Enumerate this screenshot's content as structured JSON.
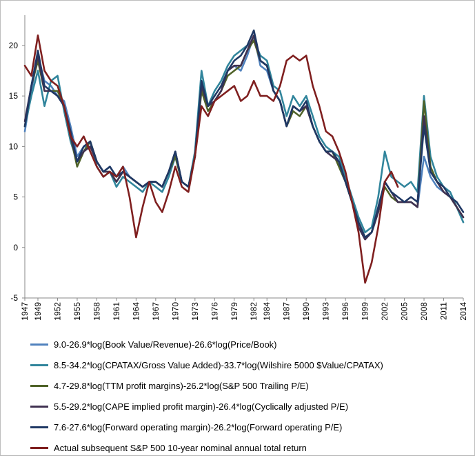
{
  "chart_data": {
    "type": "line",
    "title": "",
    "xlabel": "",
    "ylabel": "",
    "xlim": [
      1947,
      2014
    ],
    "ylim": [
      -5,
      23
    ],
    "y_ticks": [
      -5,
      0,
      5,
      10,
      15,
      20
    ],
    "x_ticks": [
      1947,
      1949,
      1952,
      1955,
      1958,
      1961,
      1964,
      1967,
      1970,
      1973,
      1976,
      1979,
      1982,
      1984,
      1987,
      1990,
      1993,
      1996,
      1999,
      2002,
      2005,
      2008,
      2011,
      2014
    ],
    "grid": false,
    "legend_position": "bottom",
    "series": [
      {
        "name": "9.0-26.9*log(Book Value/Revenue)-26.6*log(Price/Book)",
        "color": "#4f81bd",
        "x": [
          1947,
          1948,
          1949,
          1950,
          1951,
          1952,
          1953,
          1954,
          1955,
          1956,
          1957,
          1958,
          1959,
          1960,
          1961,
          1962,
          1963,
          1964,
          1965,
          1966,
          1967,
          1968,
          1969,
          1970,
          1971,
          1972,
          1973,
          1974,
          1975,
          1976,
          1977,
          1978,
          1979,
          1980,
          1981,
          1982,
          1983,
          1984,
          1985,
          1986,
          1987,
          1988,
          1989,
          1990,
          1991,
          1992,
          1993,
          1994,
          1995,
          1996,
          1997,
          1998,
          1999,
          2000,
          2001,
          2002,
          2003,
          2004,
          2005,
          2006,
          2007,
          2008,
          2009,
          2010,
          2011,
          2012,
          2013,
          2014
        ],
        "values": [
          11.5,
          15.5,
          19.0,
          16.5,
          16.0,
          15.0,
          14.5,
          12.0,
          9.0,
          10.0,
          10.0,
          8.5,
          7.5,
          8.0,
          7.0,
          8.0,
          7.0,
          6.5,
          6.0,
          6.5,
          6.5,
          6.0,
          7.5,
          9.5,
          6.5,
          6.0,
          9.0,
          16.0,
          14.0,
          14.5,
          15.5,
          17.5,
          18.0,
          17.5,
          19.0,
          21.0,
          18.0,
          17.5,
          15.5,
          14.5,
          12.0,
          14.0,
          13.5,
          14.0,
          12.0,
          10.5,
          9.5,
          9.0,
          8.5,
          6.5,
          4.5,
          2.0,
          0.8,
          1.5,
          3.5,
          6.5,
          5.5,
          4.5,
          4.5,
          4.5,
          4.0,
          9.0,
          7.0,
          6.0,
          5.5,
          5.0,
          4.0,
          3.0
        ]
      },
      {
        "name": "8.5-34.2*log(CPATAX/Gross Value Added)-33.7*log(Wilshire 5000 $Value/CPATAX)",
        "color": "#31859c",
        "x": [
          1947,
          1948,
          1949,
          1950,
          1951,
          1952,
          1953,
          1954,
          1955,
          1956,
          1957,
          1958,
          1959,
          1960,
          1961,
          1962,
          1963,
          1964,
          1965,
          1966,
          1967,
          1968,
          1969,
          1970,
          1971,
          1972,
          1973,
          1974,
          1975,
          1976,
          1977,
          1978,
          1979,
          1980,
          1981,
          1982,
          1983,
          1984,
          1985,
          1986,
          1987,
          1988,
          1989,
          1990,
          1991,
          1992,
          1993,
          1994,
          1995,
          1996,
          1997,
          1998,
          1999,
          2000,
          2001,
          2002,
          2003,
          2004,
          2005,
          2006,
          2007,
          2008,
          2009,
          2010,
          2011,
          2012,
          2013,
          2014
        ],
        "values": [
          12.0,
          15.0,
          17.5,
          14.0,
          16.5,
          17.0,
          13.5,
          10.5,
          8.5,
          9.5,
          10.5,
          8.0,
          7.0,
          7.5,
          6.0,
          7.0,
          6.5,
          6.0,
          5.5,
          6.5,
          6.0,
          5.5,
          7.0,
          9.0,
          6.5,
          6.0,
          9.5,
          17.5,
          14.0,
          15.5,
          16.5,
          18.0,
          19.0,
          19.5,
          20.0,
          20.5,
          19.0,
          18.5,
          16.0,
          15.5,
          13.0,
          15.0,
          14.0,
          15.0,
          13.0,
          11.0,
          10.0,
          9.5,
          9.0,
          7.0,
          5.0,
          3.0,
          1.5,
          2.0,
          5.0,
          9.5,
          7.0,
          6.5,
          6.0,
          6.5,
          5.5,
          15.0,
          9.0,
          7.0,
          6.0,
          5.5,
          4.0,
          2.5
        ]
      },
      {
        "name": "4.7-29.8*log(TTM profit margins)-26.2*log(S&P 500 Trailing P/E)",
        "color": "#4f6228",
        "x": [
          1947,
          1948,
          1949,
          1950,
          1951,
          1952,
          1953,
          1954,
          1955,
          1956,
          1957,
          1958,
          1959,
          1960,
          1961,
          1962,
          1963,
          1964,
          1965,
          1966,
          1967,
          1968,
          1969,
          1970,
          1971,
          1972,
          1973,
          1974,
          1975,
          1976,
          1977,
          1978,
          1979,
          1980,
          1981,
          1982,
          1983,
          1984,
          1985,
          1986,
          1987,
          1988,
          1989,
          1990,
          1991,
          1992,
          1993,
          1994,
          1995,
          1996,
          1997,
          1998,
          1999,
          2000,
          2001,
          2002,
          2003,
          2004,
          2005,
          2006,
          2007,
          2008,
          2009,
          2010,
          2011,
          2012,
          2013,
          2014
        ],
        "values": [
          12.0,
          16.0,
          18.5,
          15.5,
          15.5,
          15.5,
          14.0,
          11.0,
          8.0,
          9.5,
          10.5,
          8.5,
          7.5,
          7.5,
          6.5,
          7.5,
          7.0,
          6.5,
          6.0,
          6.5,
          6.5,
          6.0,
          7.5,
          9.0,
          6.5,
          6.0,
          9.0,
          15.5,
          13.5,
          14.5,
          15.5,
          17.0,
          17.5,
          18.0,
          19.5,
          20.5,
          18.5,
          18.0,
          15.5,
          14.5,
          12.0,
          13.5,
          13.0,
          14.0,
          12.0,
          10.5,
          9.5,
          9.5,
          8.0,
          6.5,
          4.5,
          2.5,
          1.0,
          1.5,
          3.5,
          6.0,
          5.0,
          4.5,
          4.5,
          4.5,
          4.0,
          14.5,
          8.0,
          6.5,
          5.5,
          5.0,
          4.0,
          3.0
        ]
      },
      {
        "name": "5.5-29.2*log(CAPE implied profit margin)-26.4*log(Cyclically adjusted P/E)",
        "color": "#403151",
        "x": [
          1947,
          1948,
          1949,
          1950,
          1951,
          1952,
          1953,
          1954,
          1955,
          1956,
          1957,
          1958,
          1959,
          1960,
          1961,
          1962,
          1963,
          1964,
          1965,
          1966,
          1967,
          1968,
          1969,
          1970,
          1971,
          1972,
          1973,
          1974,
          1975,
          1976,
          1977,
          1978,
          1979,
          1980,
          1981,
          1982,
          1983,
          1984,
          1985,
          1986,
          1987,
          1988,
          1989,
          1990,
          1991,
          1992,
          1993,
          1994,
          1995,
          1996,
          1997,
          1998,
          1999,
          2000,
          2001,
          2002,
          2003,
          2004,
          2005,
          2006,
          2007,
          2008,
          2009,
          2010,
          2011,
          2012,
          2013,
          2014
        ],
        "values": [
          12.5,
          16.0,
          19.0,
          15.5,
          15.5,
          15.0,
          14.0,
          11.0,
          8.5,
          9.5,
          10.0,
          8.5,
          7.5,
          7.5,
          6.5,
          7.5,
          7.0,
          6.5,
          6.0,
          6.5,
          6.5,
          6.0,
          7.5,
          9.5,
          6.5,
          6.0,
          9.0,
          16.0,
          14.0,
          14.5,
          15.5,
          17.5,
          18.0,
          18.0,
          19.5,
          21.0,
          18.5,
          18.0,
          15.5,
          14.5,
          12.0,
          14.0,
          13.5,
          14.0,
          12.0,
          10.5,
          9.5,
          9.0,
          8.5,
          6.5,
          4.5,
          2.0,
          0.8,
          1.5,
          3.5,
          6.5,
          5.5,
          4.5,
          4.5,
          4.5,
          4.0,
          13.0,
          7.5,
          6.5,
          5.5,
          5.0,
          4.0,
          3.0
        ]
      },
      {
        "name": "7.6-27.6*log(Forward operating margin)-26.2*log(Forward operating P/E)",
        "color": "#1f3864",
        "x": [
          1947,
          1948,
          1949,
          1950,
          1951,
          1952,
          1953,
          1954,
          1955,
          1956,
          1957,
          1958,
          1959,
          1960,
          1961,
          1962,
          1963,
          1964,
          1965,
          1966,
          1967,
          1968,
          1969,
          1970,
          1971,
          1972,
          1973,
          1974,
          1975,
          1976,
          1977,
          1978,
          1979,
          1980,
          1981,
          1982,
          1983,
          1984,
          1985,
          1986,
          1987,
          1988,
          1989,
          1990,
          1991,
          1992,
          1993,
          1994,
          1995,
          1996,
          1997,
          1998,
          1999,
          2000,
          2001,
          2002,
          2003,
          2004,
          2005,
          2006,
          2007,
          2008,
          2009,
          2010,
          2011,
          2012,
          2013,
          2014
        ],
        "values": [
          12.0,
          16.0,
          19.5,
          16.0,
          15.5,
          15.0,
          14.0,
          11.5,
          8.5,
          10.0,
          10.5,
          8.5,
          7.5,
          8.0,
          7.0,
          7.5,
          7.0,
          6.5,
          6.0,
          6.5,
          6.5,
          6.0,
          7.5,
          9.5,
          6.5,
          6.0,
          9.0,
          16.5,
          14.0,
          15.0,
          16.0,
          17.5,
          18.5,
          19.0,
          20.0,
          21.5,
          18.5,
          18.0,
          15.5,
          14.5,
          12.0,
          14.0,
          13.5,
          14.5,
          12.0,
          10.5,
          9.5,
          9.5,
          8.5,
          6.5,
          4.5,
          2.5,
          1.0,
          1.5,
          4.0,
          6.5,
          5.5,
          5.0,
          4.5,
          5.0,
          4.5,
          12.0,
          7.5,
          6.5,
          6.0,
          5.0,
          4.5,
          3.5
        ]
      },
      {
        "name": "Actual subsequent S&P 500 10-year nominal annual total return",
        "color": "#7f1f1f",
        "x": [
          1947,
          1948,
          1949,
          1950,
          1951,
          1952,
          1953,
          1954,
          1955,
          1956,
          1957,
          1958,
          1959,
          1960,
          1961,
          1962,
          1963,
          1964,
          1965,
          1966,
          1967,
          1968,
          1969,
          1970,
          1971,
          1972,
          1973,
          1974,
          1975,
          1976,
          1977,
          1978,
          1979,
          1980,
          1981,
          1982,
          1983,
          1984,
          1985,
          1986,
          1987,
          1988,
          1989,
          1990,
          1991,
          1992,
          1993,
          1994,
          1995,
          1996,
          1997,
          1998,
          1999,
          2000,
          2001,
          2002,
          2003,
          2004
        ],
        "values": [
          18.0,
          17.0,
          21.0,
          17.5,
          16.5,
          16.0,
          14.0,
          11.0,
          10.0,
          11.0,
          9.5,
          8.0,
          7.0,
          7.5,
          7.0,
          8.0,
          5.0,
          1.0,
          4.0,
          6.5,
          4.5,
          3.5,
          5.5,
          8.0,
          6.0,
          5.5,
          9.0,
          14.0,
          13.0,
          14.5,
          15.0,
          15.5,
          16.0,
          14.5,
          15.0,
          16.5,
          15.0,
          15.0,
          14.5,
          16.0,
          18.5,
          19.0,
          18.5,
          19.0,
          16.0,
          14.0,
          11.5,
          11.0,
          9.5,
          7.5,
          4.5,
          1.5,
          -3.5,
          -1.5,
          2.0,
          6.5,
          7.5,
          6.0
        ]
      }
    ]
  }
}
